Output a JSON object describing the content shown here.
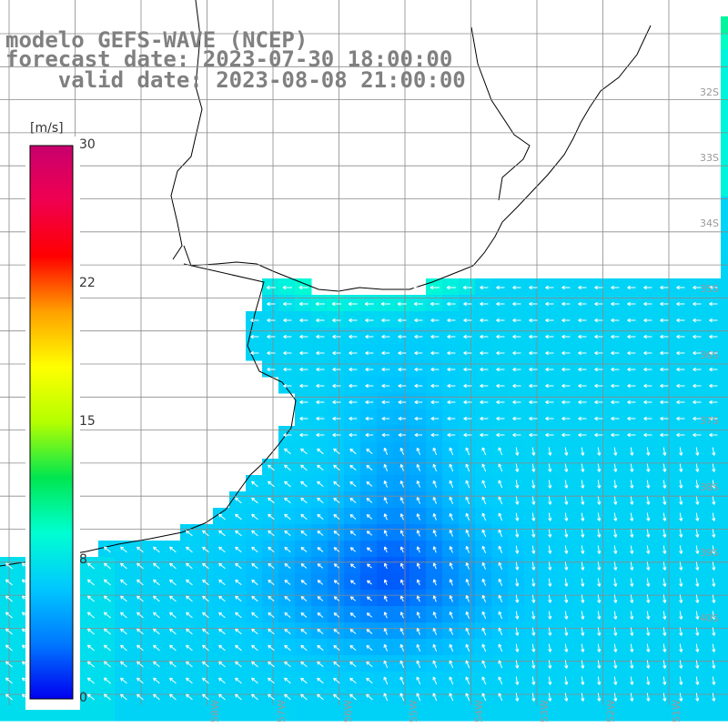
{
  "title": {
    "line1": "modelo GEFS-WAVE (NCEP)",
    "line2": "forecast date: 2023-07-30 18:00:00",
    "line3": "    valid date: 2023-08-08 21:00:00"
  },
  "colorbar": {
    "unit": "[m/s]",
    "ticks": [
      "30",
      "22",
      "15",
      "8",
      "0"
    ],
    "stops": [
      "#0000f0",
      "#0078ff",
      "#00c8ff",
      "#00ffd2",
      "#00e650",
      "#b4ff00",
      "#ffff00",
      "#ffa000",
      "#ff0000",
      "#f00050",
      "#c8006e"
    ]
  },
  "lat_labels": [
    "32S",
    "33S",
    "34S",
    "35S",
    "36S",
    "37S",
    "38S",
    "39S",
    "40S"
  ],
  "lon_labels": [
    "58W",
    "57W",
    "56W",
    "55W",
    "54W",
    "53W",
    "52W",
    "51W"
  ],
  "colors": {
    "land": "#ffffff",
    "coast": "#000000",
    "grid": "#8a8a8a",
    "arrow": "#ffffff"
  }
}
